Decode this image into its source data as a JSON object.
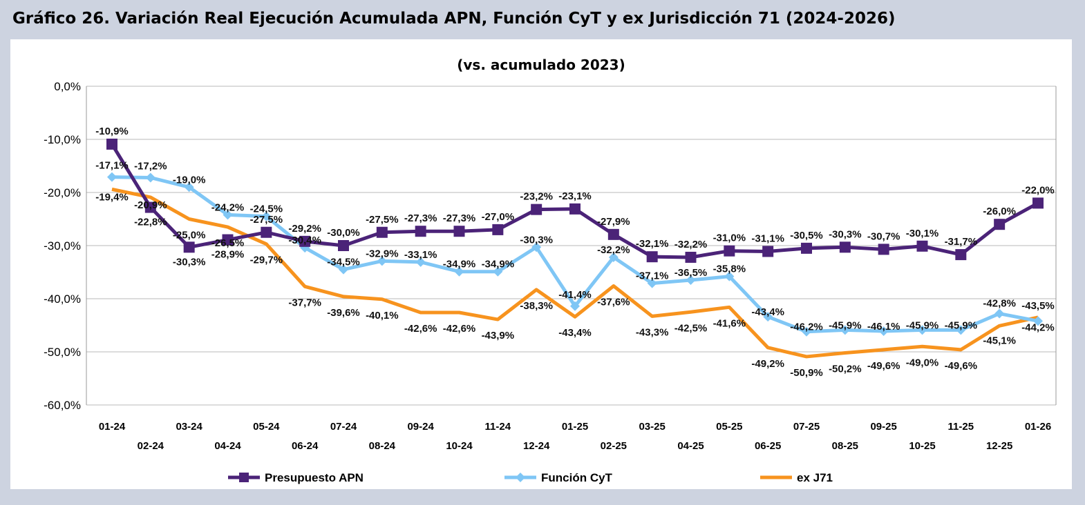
{
  "title": "Gráfico 26. Variación Real Ejecución Acumulada APN, Función CyT y ex Jurisdicción 71 (2024-2026)",
  "chart_data": {
    "type": "line",
    "subtitle": "(vs. acumulado 2023)",
    "categories": [
      "01-24",
      "02-24",
      "03-24",
      "04-24",
      "05-24",
      "06-24",
      "07-24",
      "08-24",
      "09-24",
      "10-24",
      "11-24",
      "12-24",
      "01-25",
      "02-25",
      "03-25",
      "04-25",
      "05-25",
      "06-25",
      "07-25",
      "08-25",
      "09-25",
      "10-25",
      "11-25",
      "12-25",
      "01-26"
    ],
    "ylim": [
      -60,
      0
    ],
    "yticks": [
      0,
      -10,
      -20,
      -30,
      -40,
      -50,
      -60
    ],
    "ytick_labels": [
      "0,0%",
      "-10,0%",
      "-20,0%",
      "-30,0%",
      "-40,0%",
      "-50,0%",
      "-60,0%"
    ],
    "grid": true,
    "legend": "bottom",
    "series": [
      {
        "name": "Presupuesto APN",
        "color": "#4b2378",
        "marker": "square",
        "values": [
          -10.9,
          -22.8,
          -30.3,
          -28.9,
          -27.5,
          -29.2,
          -30.0,
          -27.5,
          -27.3,
          -27.3,
          -27.0,
          -23.2,
          -23.1,
          -27.9,
          -32.1,
          -32.2,
          -31.0,
          -31.1,
          -30.5,
          -30.3,
          -30.7,
          -30.1,
          -31.7,
          -26.0,
          -22.0
        ]
      },
      {
        "name": "Función CyT",
        "color": "#7fc6f5",
        "marker": "diamond",
        "values": [
          -17.1,
          -17.2,
          -19.0,
          -24.2,
          -24.5,
          -30.4,
          -34.5,
          -32.9,
          -33.1,
          -34.9,
          -34.9,
          -30.3,
          -41.4,
          -32.2,
          -37.1,
          -36.5,
          -35.8,
          -43.4,
          -46.2,
          -45.9,
          -46.1,
          -45.9,
          -45.9,
          -42.8,
          -44.2
        ]
      },
      {
        "name": "ex J71",
        "color": "#f7931e",
        "marker": "none",
        "values": [
          -19.4,
          -20.9,
          -25.0,
          -26.5,
          -29.7,
          -37.7,
          -39.6,
          -40.1,
          -42.6,
          -42.6,
          -43.9,
          -38.3,
          -43.4,
          -37.6,
          -43.3,
          -42.5,
          -41.6,
          -49.2,
          -50.9,
          -50.2,
          -49.6,
          -49.0,
          -49.6,
          -45.1,
          -43.5
        ]
      }
    ]
  }
}
